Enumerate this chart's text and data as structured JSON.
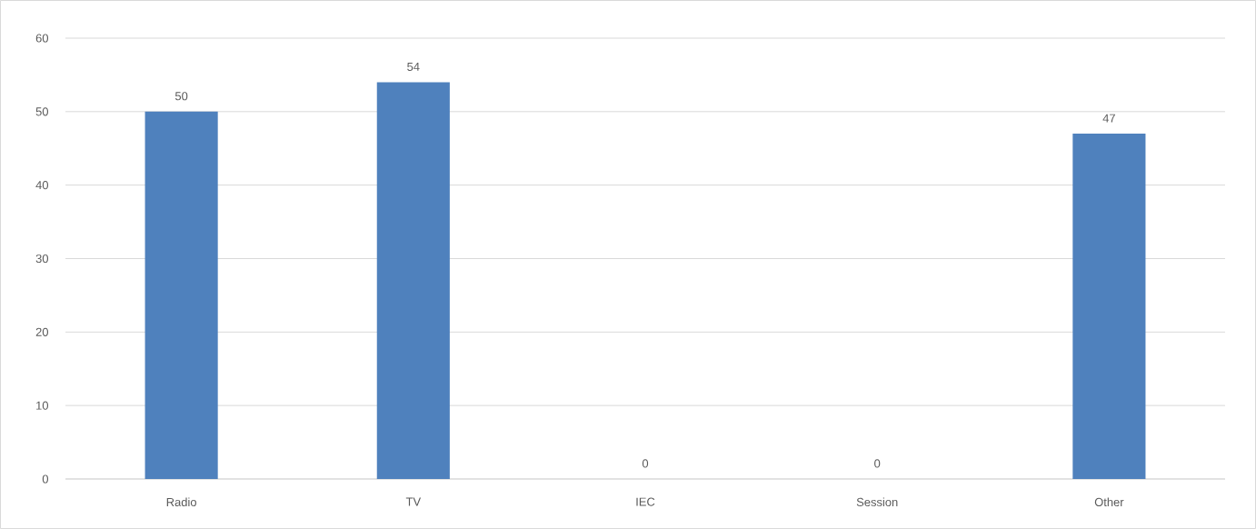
{
  "chart_data": {
    "type": "bar",
    "categories": [
      "Radio",
      "TV",
      "IEC",
      "Session",
      "Other"
    ],
    "values": [
      50,
      54,
      0,
      0,
      47
    ],
    "color": "#4f81bd",
    "ylim": [
      0,
      60
    ],
    "yticks": [
      0,
      10,
      20,
      30,
      40,
      50,
      60
    ],
    "grid": "y",
    "data_labels": true
  }
}
